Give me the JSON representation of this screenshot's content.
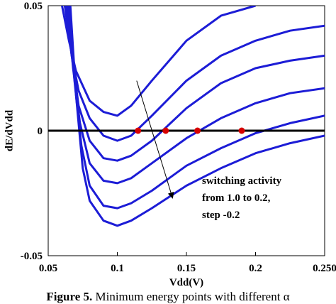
{
  "chart_data": {
    "type": "line",
    "xlabel": "Vdd(V)",
    "ylabel": "dE/dVdd",
    "xlim": [
      0.05,
      0.25
    ],
    "ylim": [
      -0.05,
      0.05
    ],
    "x_ticks": [
      "0.05",
      "0.1",
      "0.15",
      "0.2",
      "0.250"
    ],
    "y_ticks": [
      "0.05",
      "0",
      "-0.05"
    ],
    "series_color": "#1c1cd6",
    "series": [
      {
        "x": [
          0.06,
          0.065,
          0.07,
          0.08,
          0.09,
          0.1,
          0.11,
          0.125,
          0.15,
          0.175,
          0.2
        ],
        "y": [
          0.05,
          0.036,
          0.024,
          0.012,
          0.0075,
          0.006,
          0.01,
          0.02,
          0.036,
          0.046,
          0.05
        ]
      },
      {
        "x": [
          0.062,
          0.067,
          0.072,
          0.08,
          0.09,
          0.1,
          0.11,
          0.125,
          0.15,
          0.175,
          0.2,
          0.225,
          0.25
        ],
        "y": [
          0.05,
          0.03,
          0.016,
          0.005,
          -0.002,
          -0.004,
          -0.002,
          0.006,
          0.02,
          0.03,
          0.036,
          0.04,
          0.042
        ]
      },
      {
        "x": [
          0.063,
          0.067,
          0.072,
          0.08,
          0.09,
          0.1,
          0.11,
          0.125,
          0.15,
          0.175,
          0.2,
          0.225,
          0.25
        ],
        "y": [
          0.05,
          0.03,
          0.01,
          -0.004,
          -0.011,
          -0.012,
          -0.01,
          -0.004,
          0.009,
          0.019,
          0.025,
          0.028,
          0.03
        ]
      },
      {
        "x": [
          0.064,
          0.068,
          0.073,
          0.08,
          0.09,
          0.1,
          0.11,
          0.125,
          0.15,
          0.175,
          0.2,
          0.225,
          0.25
        ],
        "y": [
          0.05,
          0.025,
          0.003,
          -0.013,
          -0.02,
          -0.021,
          -0.019,
          -0.013,
          -0.003,
          0.005,
          0.011,
          0.015,
          0.017
        ]
      },
      {
        "x": [
          0.065,
          0.069,
          0.074,
          0.08,
          0.09,
          0.1,
          0.11,
          0.125,
          0.15,
          0.175,
          0.2,
          0.225,
          0.25
        ],
        "y": [
          0.05,
          0.02,
          -0.006,
          -0.022,
          -0.03,
          -0.031,
          -0.029,
          -0.024,
          -0.014,
          -0.007,
          -0.001,
          0.003,
          0.006
        ]
      },
      {
        "x": [
          0.066,
          0.07,
          0.075,
          0.08,
          0.09,
          0.1,
          0.11,
          0.125,
          0.15,
          0.175,
          0.2,
          0.225,
          0.25
        ],
        "y": [
          0.05,
          0.015,
          -0.015,
          -0.028,
          -0.036,
          -0.038,
          -0.036,
          -0.031,
          -0.022,
          -0.015,
          -0.009,
          -0.005,
          -0.002
        ]
      }
    ],
    "zero_line": 0,
    "minimum_points": [
      {
        "x": 0.115,
        "y": 0
      },
      {
        "x": 0.135,
        "y": 0
      },
      {
        "x": 0.158,
        "y": 0
      },
      {
        "x": 0.19,
        "y": 0
      }
    ],
    "marker_color": "#d60000",
    "arrow": {
      "from": [
        0.114,
        0.02
      ],
      "to": [
        0.14,
        -0.027
      ]
    },
    "annotation": [
      "switching activity",
      "from 1.0 to 0.2,",
      "step -0.2"
    ]
  },
  "caption": {
    "label": "Figure 5.",
    "text": "Minimum energy points with different α"
  }
}
